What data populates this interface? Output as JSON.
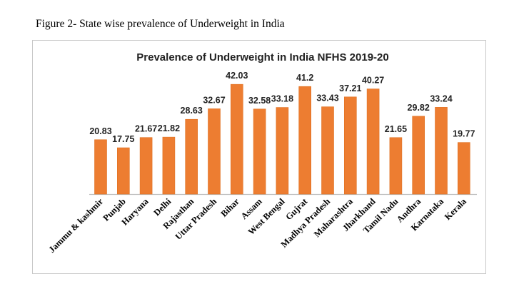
{
  "caption": "Figure 2- State wise prevalence of Underweight in India",
  "chart_data": {
    "type": "bar",
    "title": "Prevalence of Underweight in India NFHS 2019-20",
    "xlabel": "",
    "ylabel": "",
    "categories": [
      "Jammu & kashmir",
      "Punjab",
      "Haryana",
      "Delhi",
      "Rajasthan",
      "Uttar Pradesh",
      "Bihar",
      "Assam",
      "West Bengal",
      "Gujrat",
      "Madhya Pradesh",
      "Maharashtra",
      "Jharkhand",
      "Tamil Nadu",
      "Andhra",
      "Karnataka",
      "Kerala"
    ],
    "values": [
      20.83,
      17.75,
      21.67,
      21.82,
      28.63,
      32.67,
      42.03,
      32.58,
      33.18,
      41.2,
      33.43,
      37.21,
      40.27,
      21.65,
      29.82,
      33.24,
      19.77
    ],
    "value_labels": [
      "20.83",
      "17.75",
      "21.67",
      "21.82",
      "28.63",
      "32.67",
      "42.03",
      "32.58",
      "33.18",
      "41.2",
      "33.43",
      "37.21",
      "40.27",
      "21.65",
      "29.82",
      "33.24",
      "19.77"
    ],
    "ylim": [
      0,
      45
    ],
    "grid": false,
    "legend": "none",
    "bar_color": "#ED7D31"
  }
}
